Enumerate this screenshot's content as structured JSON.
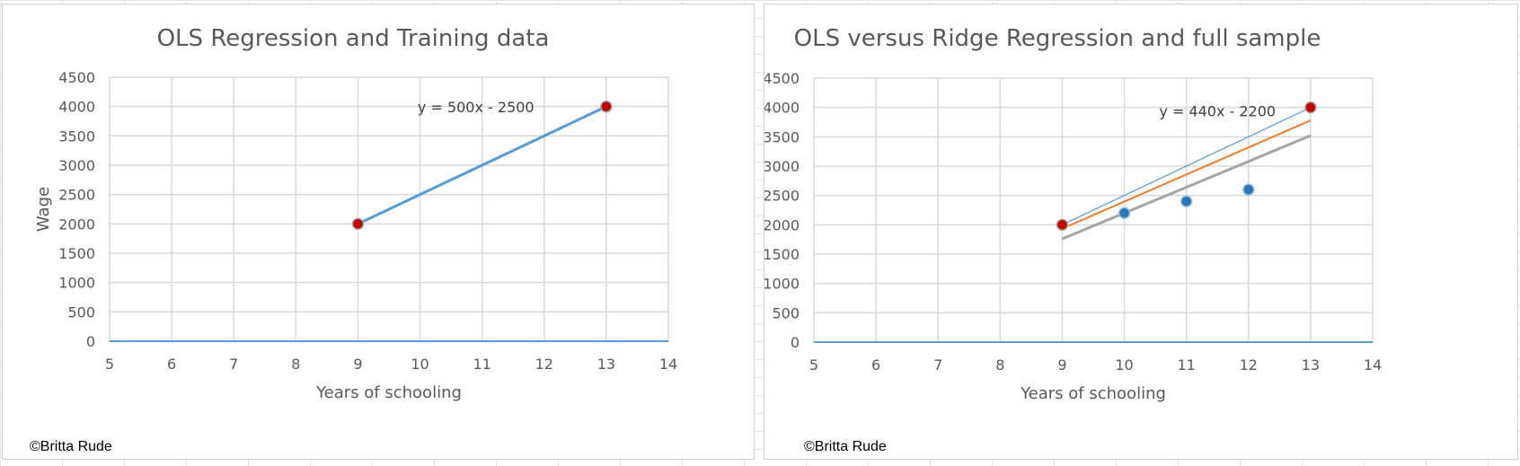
{
  "colors": {
    "grid": "#d9d9d9",
    "axis_line": "#5b9bd5",
    "ols_line": "#5b9bd5",
    "ridge_line_orange": "#ed7d31",
    "ridge_line_gray": "#a5a5a5",
    "training_point": "#c00000",
    "sample_point": "#2e75b6",
    "text": "#595959"
  },
  "copyright_left": "©Britta Rude",
  "copyright_right": "©Britta Rude",
  "chart_data": [
    {
      "type": "line",
      "title": "OLS Regression and Training data",
      "xlabel": "Years of schooling",
      "ylabel": "Wage",
      "xlim": [
        5,
        14
      ],
      "ylim": [
        0,
        4500
      ],
      "x_ticks": [
        5,
        6,
        7,
        8,
        9,
        10,
        11,
        12,
        13,
        14
      ],
      "y_ticks": [
        0,
        500,
        1000,
        1500,
        2000,
        2500,
        3000,
        3500,
        4000,
        4500
      ],
      "grid": true,
      "legend": "none",
      "annotation": {
        "text": "y = 500x - 2500",
        "x": 10.9,
        "y": 3900
      },
      "series": [
        {
          "kind": "line",
          "style": "ols",
          "x": [
            9,
            13
          ],
          "y": [
            2000,
            4000
          ]
        },
        {
          "kind": "scatter",
          "style": "training",
          "x": [
            9,
            13
          ],
          "y": [
            2000,
            4000
          ]
        }
      ]
    },
    {
      "type": "line",
      "title": "OLS versus Ridge Regression and full sample",
      "xlabel": "Years of schooling",
      "ylabel": "Wage",
      "xlim": [
        5,
        14
      ],
      "ylim": [
        0,
        4500
      ],
      "x_ticks": [
        5,
        6,
        7,
        8,
        9,
        10,
        11,
        12,
        13,
        14
      ],
      "y_ticks": [
        0,
        500,
        1000,
        1500,
        2000,
        2500,
        3000,
        3500,
        4000,
        4500
      ],
      "grid": true,
      "legend": "none",
      "annotation": {
        "text": "y = 440x - 2200",
        "x": 11.5,
        "y": 3850
      },
      "series": [
        {
          "kind": "line",
          "style": "ols_thin",
          "x": [
            9,
            13
          ],
          "y": [
            2000,
            4000
          ]
        },
        {
          "kind": "line",
          "style": "ridge_orange",
          "x": [
            9.1,
            13
          ],
          "y": [
            1980,
            3780
          ]
        },
        {
          "kind": "line",
          "style": "ridge_gray",
          "x": [
            9,
            13
          ],
          "y": [
            1760,
            3520
          ]
        },
        {
          "kind": "scatter",
          "style": "sample",
          "x": [
            10,
            11,
            12
          ],
          "y": [
            2200,
            2400,
            2600
          ]
        },
        {
          "kind": "scatter",
          "style": "training",
          "x": [
            9,
            13
          ],
          "y": [
            2000,
            4000
          ]
        }
      ]
    }
  ]
}
